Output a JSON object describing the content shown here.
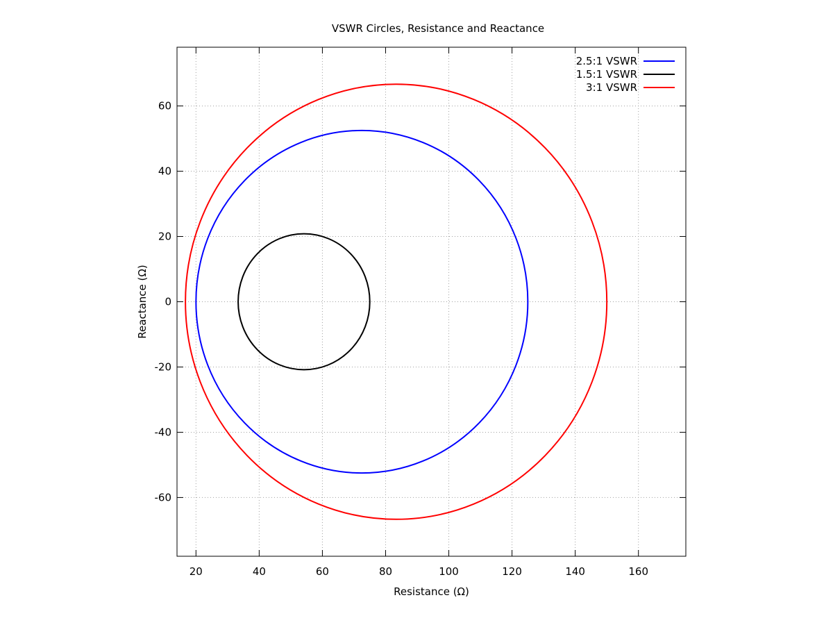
{
  "chart_data": {
    "type": "line",
    "title": "VSWR Circles, Resistance and Reactance",
    "xlabel": "Resistance (Ω)",
    "ylabel": "Reactance (Ω)",
    "xlim": [
      14,
      175
    ],
    "ylim": [
      -78,
      78
    ],
    "xticks": [
      20,
      40,
      60,
      80,
      100,
      120,
      140,
      160
    ],
    "yticks": [
      -60,
      -40,
      -20,
      0,
      20,
      40,
      60
    ],
    "grid": true,
    "legend_position": "top-right",
    "series": [
      {
        "name": "2.5:1 VSWR",
        "color": "#0000ff",
        "center": [
          72.5,
          0
        ],
        "radius": 52.5
      },
      {
        "name": "1.5:1 VSWR",
        "color": "#000000",
        "center": [
          54.17,
          0
        ],
        "radius": 20.83
      },
      {
        "name": "3:1 VSWR",
        "color": "#ff0000",
        "center": [
          83.33,
          0
        ],
        "radius": 66.67
      }
    ]
  }
}
